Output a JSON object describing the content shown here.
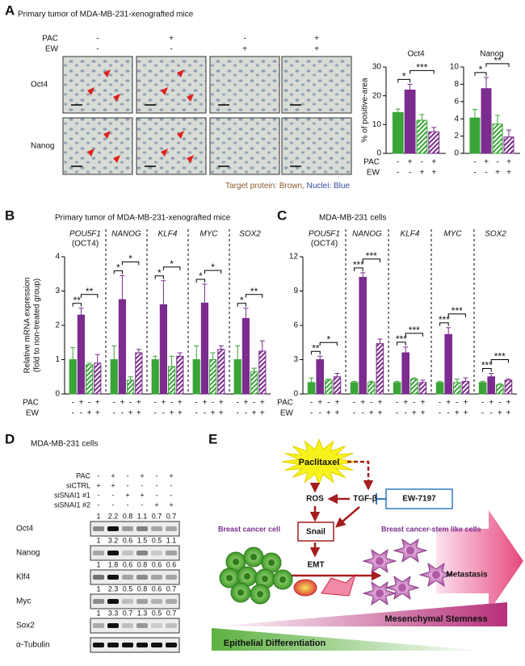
{
  "panel_labels": [
    "A",
    "B",
    "C",
    "D",
    "E"
  ],
  "panel_a": {
    "title": "Primary tumor of MDA-MB-231-xenografted mice",
    "treatments": [
      {
        "label": "PAC",
        "signs": [
          "-",
          "+",
          "-",
          "+"
        ]
      },
      {
        "label": "EW",
        "signs": [
          "-",
          "-",
          "+",
          "+"
        ]
      }
    ],
    "row_labels": [
      "Oct4",
      "Nanog"
    ],
    "caption": [
      "Target protein: Brown,",
      "Nuclei: Blue"
    ]
  },
  "chart_data": [
    {
      "type": "bar",
      "title": "Oct4",
      "ylabel": "% of positive-area",
      "ylim": [
        0,
        30
      ],
      "yticks": [
        0,
        10,
        20,
        30
      ],
      "values": [
        14.2,
        22,
        11.5,
        7.5
      ],
      "errors": [
        1.2,
        2,
        2,
        1.5
      ],
      "colors": [
        "#3aa537",
        "#7b2c8e",
        "#3aa537",
        "#7b2c8e"
      ],
      "hatched": [
        false,
        false,
        true,
        true
      ],
      "significance": [
        {
          "text": "*",
          "from": 0,
          "to": 1
        },
        {
          "text": "***",
          "from": 1,
          "to": 3
        }
      ],
      "treatments": [
        {
          "label": "PAC",
          "signs": [
            "-",
            "+",
            "-",
            "+"
          ]
        },
        {
          "label": "EW",
          "signs": [
            "-",
            "-",
            "+",
            "+"
          ]
        }
      ]
    },
    {
      "type": "bar",
      "title": "Nanog",
      "ylim": [
        0,
        10
      ],
      "yticks": [
        0,
        2,
        4,
        6,
        8,
        10
      ],
      "values": [
        4.1,
        7.5,
        3.4,
        1.9
      ],
      "errors": [
        1,
        1.3,
        1,
        0.8
      ],
      "colors": [
        "#3aa537",
        "#7b2c8e",
        "#3aa537",
        "#7b2c8e"
      ],
      "hatched": [
        false,
        false,
        true,
        true
      ],
      "significance": [
        {
          "text": "*",
          "from": 0,
          "to": 1
        },
        {
          "text": "**",
          "from": 1,
          "to": 3
        }
      ],
      "treatments": [
        {
          "signs": [
            "-",
            "+",
            "-",
            "+"
          ]
        },
        {
          "signs": [
            "-",
            "-",
            "+",
            "+"
          ]
        }
      ]
    },
    {
      "type": "bar",
      "title": "Primary tumor of MDA-MB-231-xenografted mice",
      "ylabel": [
        "Relative mRNA expression",
        "(fold to non-treated group)"
      ],
      "categories": [
        "POU5F1",
        "NANOG",
        "KLF4",
        "MYC",
        "SOX2"
      ],
      "category_note": "(OCT4)",
      "ylim": [
        0,
        4
      ],
      "yticks": [
        0,
        1,
        2,
        3,
        4
      ],
      "series": [
        {
          "color": "#3aa537",
          "hatched": false,
          "values": [
            1.0,
            1.0,
            1.0,
            1.0,
            1.0
          ],
          "errors": [
            0.35,
            0.4,
            0.1,
            0.4,
            0.4
          ]
        },
        {
          "color": "#7b2c8e",
          "hatched": false,
          "values": [
            2.3,
            2.75,
            2.6,
            2.65,
            2.2
          ],
          "errors": [
            0.2,
            0.7,
            0.7,
            0.55,
            0.3
          ]
        },
        {
          "color": "#3aa537",
          "hatched": true,
          "values": [
            0.85,
            0.4,
            0.8,
            1.0,
            0.65
          ],
          "errors": [
            0.05,
            0.1,
            0.3,
            0.2,
            0.1
          ]
        },
        {
          "color": "#7b2c8e",
          "hatched": true,
          "values": [
            0.9,
            1.2,
            1.1,
            1.3,
            1.25
          ],
          "errors": [
            0.25,
            0.1,
            0.1,
            0.1,
            0.3
          ]
        }
      ],
      "significance": [
        {
          "category": 0,
          "from": 0,
          "to": 1,
          "text": "**"
        },
        {
          "category": 0,
          "from": 1,
          "to": 3,
          "text": "**"
        },
        {
          "category": 1,
          "from": 0,
          "to": 1,
          "text": "*"
        },
        {
          "category": 1,
          "from": 1,
          "to": 3,
          "text": "*"
        },
        {
          "category": 2,
          "from": 0,
          "to": 1,
          "text": "*"
        },
        {
          "category": 2,
          "from": 1,
          "to": 3,
          "text": "*"
        },
        {
          "category": 3,
          "from": 0,
          "to": 1,
          "text": "*"
        },
        {
          "category": 3,
          "from": 1,
          "to": 3,
          "text": "*"
        },
        {
          "category": 4,
          "from": 0,
          "to": 1,
          "text": "*"
        },
        {
          "category": 4,
          "from": 1,
          "to": 3,
          "text": "**"
        }
      ],
      "treatments": [
        {
          "label": "PAC",
          "signs": [
            "-",
            "+",
            "-",
            "+"
          ]
        },
        {
          "label": "EW",
          "signs": [
            "-",
            "-",
            "+",
            "+"
          ]
        }
      ]
    },
    {
      "type": "bar",
      "title": "MDA-MB-231 cells",
      "categories": [
        "POU5F1",
        "NANOG",
        "KLF4",
        "MYC",
        "SOX2"
      ],
      "category_note": "(OCT4)",
      "ylim": [
        0,
        12
      ],
      "yticks": [
        0,
        3,
        6,
        9,
        12
      ],
      "series": [
        {
          "color": "#3aa537",
          "hatched": false,
          "values": [
            1.0,
            1.0,
            1.0,
            1.0,
            1.0
          ],
          "errors": [
            0.4,
            0.1,
            0.1,
            0.1,
            0.1
          ]
        },
        {
          "color": "#7b2c8e",
          "hatched": false,
          "values": [
            3.0,
            10.2,
            3.6,
            5.2,
            1.5
          ],
          "errors": [
            0.3,
            0.4,
            0.5,
            0.6,
            0.3
          ]
        },
        {
          "color": "#3aa537",
          "hatched": true,
          "values": [
            1.2,
            1.0,
            1.3,
            1.0,
            0.8
          ],
          "errors": [
            0.1,
            0.1,
            0.1,
            0.3,
            0.1
          ]
        },
        {
          "color": "#7b2c8e",
          "hatched": true,
          "values": [
            1.5,
            4.4,
            1.0,
            1.1,
            1.2
          ],
          "errors": [
            0.3,
            0.4,
            0.2,
            0.3,
            0.1
          ]
        }
      ],
      "significance": [
        {
          "category": 0,
          "from": 0,
          "to": 1,
          "text": "**"
        },
        {
          "category": 0,
          "from": 1,
          "to": 3,
          "text": "*"
        },
        {
          "category": 1,
          "from": 0,
          "to": 1,
          "text": "***"
        },
        {
          "category": 1,
          "from": 1,
          "to": 3,
          "text": "***"
        },
        {
          "category": 2,
          "from": 0,
          "to": 1,
          "text": "***"
        },
        {
          "category": 2,
          "from": 1,
          "to": 3,
          "text": "***"
        },
        {
          "category": 3,
          "from": 0,
          "to": 1,
          "text": "***"
        },
        {
          "category": 3,
          "from": 1,
          "to": 3,
          "text": "***"
        },
        {
          "category": 4,
          "from": 0,
          "to": 1,
          "text": "***"
        },
        {
          "category": 4,
          "from": 1,
          "to": 3,
          "text": "***"
        }
      ],
      "treatments": [
        {
          "label": "PAC",
          "signs": [
            "-",
            "+",
            "-",
            "+"
          ]
        },
        {
          "label": "EW",
          "signs": [
            "-",
            "-",
            "+",
            "+"
          ]
        }
      ]
    }
  ],
  "panel_d": {
    "title": "MDA-MB-231 cells",
    "treatments": [
      {
        "label": "PAC",
        "signs": [
          "-",
          "+",
          "-",
          "+",
          "-",
          "+"
        ]
      },
      {
        "label": "siCTRL",
        "signs": [
          "+",
          "+",
          "-",
          "-",
          "-",
          "-"
        ]
      },
      {
        "label": "siSNAI1 #1",
        "signs": [
          "-",
          "-",
          "+",
          "+",
          "-",
          "-"
        ]
      },
      {
        "label": "siSNAI1 #2",
        "signs": [
          "-",
          "-",
          "-",
          "-",
          "+",
          "+"
        ]
      }
    ],
    "blots": [
      {
        "label": "Oct4",
        "quant": [
          1,
          2.2,
          0.8,
          1.1,
          0.7,
          0.7
        ]
      },
      {
        "label": "Nanog",
        "quant": [
          1,
          3.2,
          0.6,
          1.5,
          0.5,
          1.1
        ]
      },
      {
        "label": "Klf4",
        "quant": [
          1,
          1.8,
          0.6,
          0.8,
          0.6,
          0.6
        ]
      },
      {
        "label": "Myc",
        "quant": [
          1,
          2.3,
          0.5,
          0.8,
          0.6,
          0.7
        ]
      },
      {
        "label": "Sox2",
        "quant": [
          1,
          3.3,
          0.7,
          1.3,
          0.5,
          0.7
        ]
      },
      {
        "label": "α-Tubulin"
      }
    ]
  },
  "panel_e": {
    "drug": "Paclitaxel",
    "ros": "ROS",
    "tgf": "TGF-β",
    "inhibitor": "EW-7197",
    "snail": "Snail",
    "emt": "EMT",
    "cell_left": "Breast cancer cell",
    "cell_right": "Breast cancer-stem like cells",
    "metastasis": "Metastasis",
    "stemness": "Mesenchymal Stemness",
    "differentiation": "Epithelial Differentiation"
  }
}
